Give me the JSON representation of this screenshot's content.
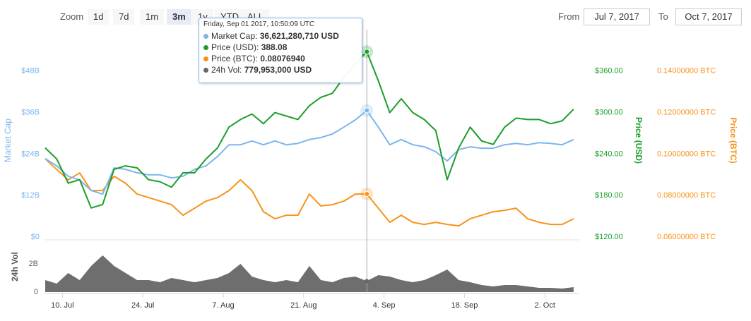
{
  "controls": {
    "zoom_label": "Zoom",
    "buttons": [
      "1d",
      "7d",
      "1m",
      "3m",
      "1y",
      "YTD",
      "ALL"
    ],
    "selected": "3m",
    "from_label": "From",
    "from": "Jul 7, 2017",
    "to_label": "To",
    "to": "Oct 7, 2017"
  },
  "chart_data": [
    {
      "type": "line",
      "x": [
        "2017-07-07",
        "2017-07-09",
        "2017-07-11",
        "2017-07-13",
        "2017-07-15",
        "2017-07-17",
        "2017-07-19",
        "2017-07-21",
        "2017-07-23",
        "2017-07-25",
        "2017-07-27",
        "2017-07-29",
        "2017-07-31",
        "2017-08-02",
        "2017-08-04",
        "2017-08-06",
        "2017-08-08",
        "2017-08-10",
        "2017-08-12",
        "2017-08-14",
        "2017-08-16",
        "2017-08-18",
        "2017-08-20",
        "2017-08-22",
        "2017-08-24",
        "2017-08-26",
        "2017-08-28",
        "2017-08-30",
        "2017-09-01",
        "2017-09-03",
        "2017-09-05",
        "2017-09-07",
        "2017-09-09",
        "2017-09-11",
        "2017-09-13",
        "2017-09-15",
        "2017-09-17",
        "2017-09-19",
        "2017-09-21",
        "2017-09-23",
        "2017-09-25",
        "2017-09-27",
        "2017-09-29",
        "2017-10-01",
        "2017-10-03",
        "2017-10-05",
        "2017-10-07"
      ],
      "xlim": [
        "2017-07-07",
        "2017-10-08"
      ],
      "ylim": [
        0,
        60000000000
      ],
      "yticks": [
        {
          "value": 0,
          "label": "$0"
        },
        {
          "value": 12000000000,
          "label": "$12B"
        },
        {
          "value": 24000000000,
          "label": "$24B"
        },
        {
          "value": 36000000000,
          "label": "$36B"
        },
        {
          "value": 48000000000,
          "label": "$48B"
        }
      ],
      "ylabel": "Market Cap",
      "y2lim": [
        120,
        420
      ],
      "y2ticks": [
        {
          "value": 120,
          "label": "$120.00"
        },
        {
          "value": 180,
          "label": "$180.00"
        },
        {
          "value": 240,
          "label": "$240.00"
        },
        {
          "value": 300,
          "label": "$300.00"
        },
        {
          "value": 360,
          "label": "$360.00"
        }
      ],
      "y2label": "Price (USD)",
      "y3lim": [
        0.06,
        0.16
      ],
      "y3ticks": [
        {
          "value": 0.06,
          "label": "0.06000000 BTC"
        },
        {
          "value": 0.08,
          "label": "0.08000000 BTC"
        },
        {
          "value": 0.1,
          "label": "0.10000000 BTC"
        },
        {
          "value": 0.12,
          "label": "0.12000000 BTC"
        },
        {
          "value": 0.14,
          "label": "0.14000000 BTC"
        }
      ],
      "y3label": "Price (BTC)",
      "series": [
        {
          "name": "Market Cap",
          "color": "#7cb5ec",
          "axis": "y",
          "values": [
            22700000000,
            20600000000,
            17600000000,
            16500000000,
            13500000000,
            12400000000,
            20000000000,
            19600000000,
            18600000000,
            18000000000,
            18000000000,
            17100000000,
            17600000000,
            19600000000,
            20600000000,
            23300000000,
            26700000000,
            26700000000,
            27800000000,
            26700000000,
            27800000000,
            26700000000,
            27100000000,
            28200000000,
            28800000000,
            29800000000,
            31800000000,
            33900000000,
            36621280710,
            31800000000,
            26700000000,
            28200000000,
            26700000000,
            26100000000,
            24700000000,
            22000000000,
            25300000000,
            26100000000,
            25700000000,
            25700000000,
            26700000000,
            27100000000,
            26700000000,
            27300000000,
            27100000000,
            26700000000,
            28200000000
          ]
        },
        {
          "name": "Price (USD)",
          "color": "#1a9e2a",
          "axis": "y2",
          "values": [
            249,
            233,
            198,
            203,
            162,
            167,
            218,
            223,
            220,
            203,
            200,
            192,
            213,
            213,
            233,
            249,
            279,
            290,
            298,
            284,
            300,
            295,
            290,
            310,
            322,
            328,
            351,
            371,
            388.08,
            346,
            300,
            320,
            300,
            290,
            274,
            203,
            249,
            279,
            259,
            254,
            279,
            292,
            290,
            290,
            284,
            288,
            305
          ]
        },
        {
          "name": "Price (BTC)",
          "color": "#f7931a",
          "axis": "y3",
          "values": [
            0.0977,
            0.0926,
            0.0876,
            0.0909,
            0.0824,
            0.0824,
            0.0893,
            0.0859,
            0.0807,
            0.079,
            0.0773,
            0.0756,
            0.0705,
            0.0739,
            0.0773,
            0.079,
            0.0824,
            0.0876,
            0.0824,
            0.0722,
            0.0688,
            0.0705,
            0.0705,
            0.0807,
            0.075,
            0.0756,
            0.0773,
            0.0807,
            0.0807694,
            0.0739,
            0.0671,
            0.0705,
            0.0671,
            0.0661,
            0.0671,
            0.0661,
            0.0654,
            0.0688,
            0.0705,
            0.0722,
            0.0729,
            0.0739,
            0.0688,
            0.0671,
            0.0661,
            0.0661,
            0.0688
          ]
        }
      ],
      "tooltip": {
        "x": "2017-09-01",
        "title": "Friday, Sep 01 2017, 10:50:09 UTC",
        "labels": [
          "36,621,280,710 USD",
          "388.08",
          "0.08076940",
          "779,953,000 USD"
        ]
      }
    },
    {
      "type": "area",
      "x": [
        "2017-07-07",
        "2017-07-09",
        "2017-07-11",
        "2017-07-13",
        "2017-07-15",
        "2017-07-17",
        "2017-07-19",
        "2017-07-21",
        "2017-07-23",
        "2017-07-25",
        "2017-07-27",
        "2017-07-29",
        "2017-07-31",
        "2017-08-02",
        "2017-08-04",
        "2017-08-06",
        "2017-08-08",
        "2017-08-10",
        "2017-08-12",
        "2017-08-14",
        "2017-08-16",
        "2017-08-18",
        "2017-08-20",
        "2017-08-22",
        "2017-08-24",
        "2017-08-26",
        "2017-08-28",
        "2017-08-30",
        "2017-09-01",
        "2017-09-03",
        "2017-09-05",
        "2017-09-07",
        "2017-09-09",
        "2017-09-11",
        "2017-09-13",
        "2017-09-15",
        "2017-09-17",
        "2017-09-19",
        "2017-09-21",
        "2017-09-23",
        "2017-09-25",
        "2017-09-27",
        "2017-09-29",
        "2017-10-01",
        "2017-10-03",
        "2017-10-05",
        "2017-10-07"
      ],
      "xlim": [
        "2017-07-07",
        "2017-10-08"
      ],
      "xticks": [
        {
          "value": "2017-07-10",
          "label": "10. Jul"
        },
        {
          "value": "2017-07-24",
          "label": "24. Jul"
        },
        {
          "value": "2017-08-07",
          "label": "7. Aug"
        },
        {
          "value": "2017-08-21",
          "label": "21. Aug"
        },
        {
          "value": "2017-09-04",
          "label": "4. Sep"
        },
        {
          "value": "2017-09-18",
          "label": "18. Sep"
        },
        {
          "value": "2017-10-02",
          "label": "2. Oct"
        }
      ],
      "ylim": [
        0,
        3600000000
      ],
      "yticks": [
        0,
        {
          "value": 2000000000,
          "label": "2B"
        }
      ],
      "ylabel": "24h Vol",
      "series": [
        {
          "name": "24h Vol",
          "color": "#666666",
          "values": [
            850000000,
            600000000,
            1350000000,
            850000000,
            1850000000,
            2600000000,
            1850000000,
            1350000000,
            850000000,
            850000000,
            700000000,
            1000000000,
            850000000,
            700000000,
            850000000,
            1000000000,
            1350000000,
            2000000000,
            1100000000,
            850000000,
            700000000,
            850000000,
            700000000,
            1850000000,
            850000000,
            700000000,
            1000000000,
            1100000000,
            779953000,
            1200000000,
            1100000000,
            850000000,
            700000000,
            850000000,
            1200000000,
            1600000000,
            850000000,
            700000000,
            500000000,
            400000000,
            500000000,
            500000000,
            400000000,
            300000000,
            300000000,
            250000000,
            350000000
          ]
        }
      ]
    }
  ]
}
